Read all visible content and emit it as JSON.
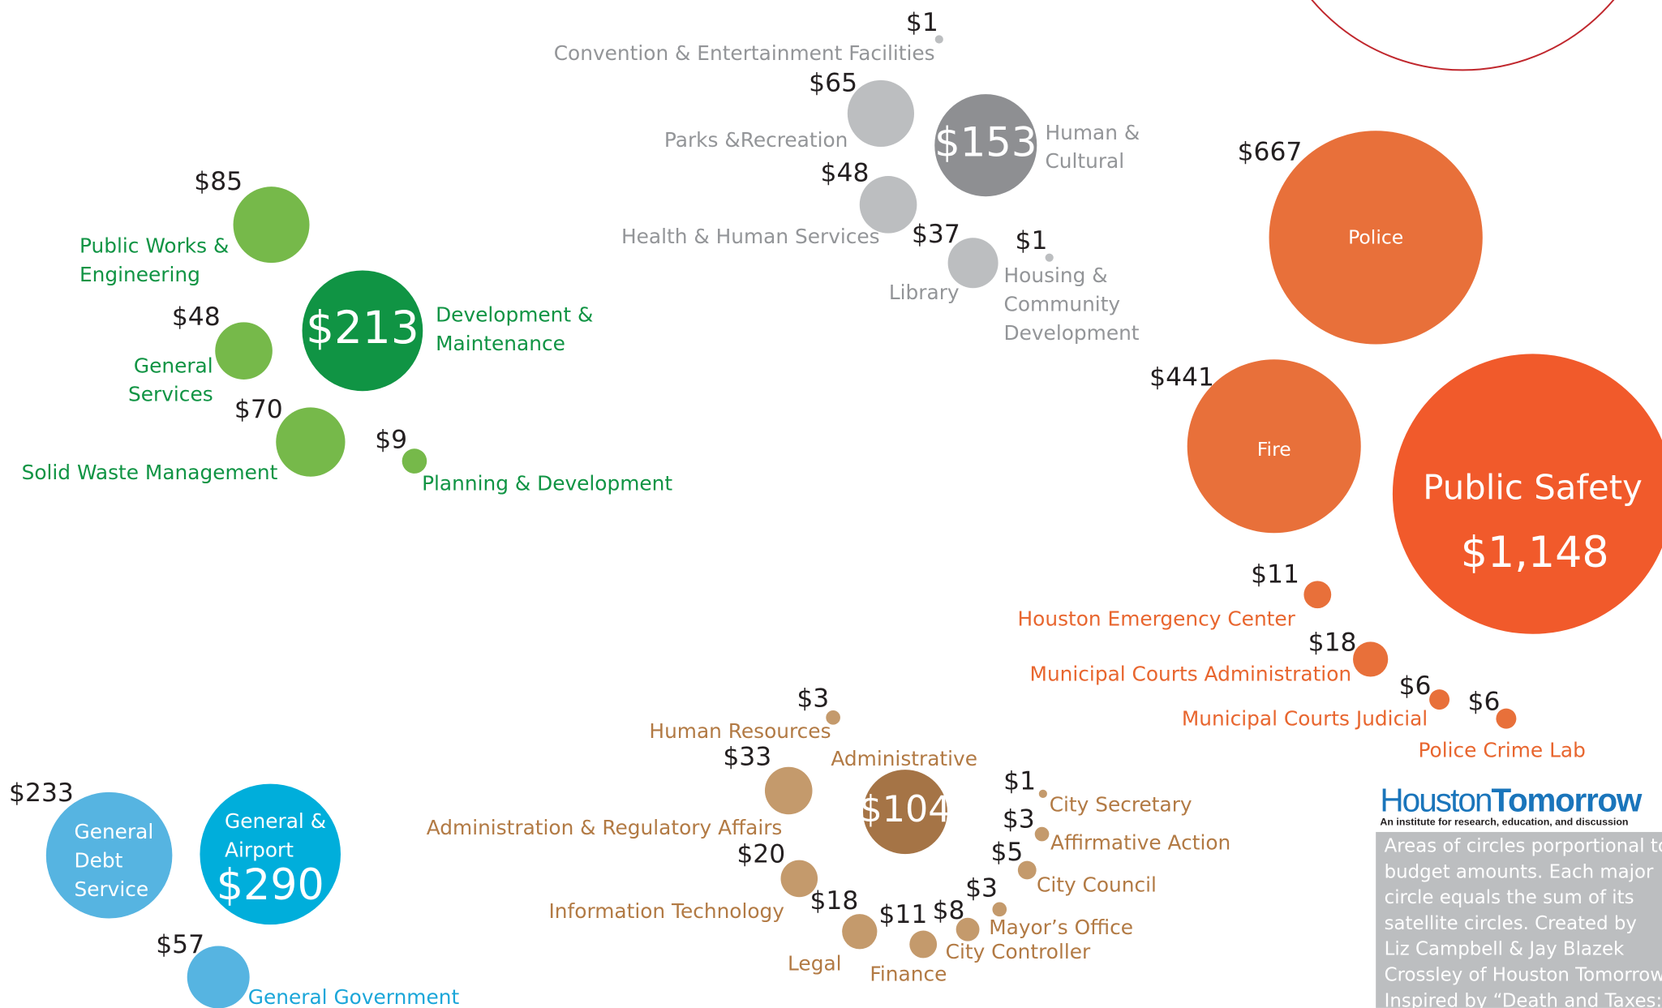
{
  "chart_data": {
    "type": "bubble",
    "categories": [
      "Convention & Entertainment Facilities",
      "Parks &Recreation",
      [
        "Human &",
        "Cultural"
      ],
      "Health & Human Services",
      "Library",
      [
        "Housing &",
        "Community",
        "Development"
      ],
      [
        "Public Works &",
        "Engineering"
      ],
      [
        "Development &",
        "Maintenance"
      ],
      [
        "General",
        "Services"
      ],
      "Solid Waste Management",
      "Planning & Development",
      "Police",
      "Fire",
      "Public Safety",
      "Houston Emergency Center",
      "Municipal Courts Administration",
      "Municipal Courts Judicial",
      "Police Crime Lab",
      "Human Resources",
      "Administrative",
      "Administration & Regulatory Affairs",
      "Information Technology",
      "Legal",
      "Finance",
      "City Controller",
      "Mayor’s Office",
      "City Council",
      "Affirmative Action",
      "City Secretary",
      [
        "General",
        "Debt",
        "Service"
      ],
      [
        "General &",
        "Airport"
      ],
      "General Government"
    ],
    "values": [
      1,
      65,
      153,
      48,
      37,
      1,
      85,
      213,
      48,
      70,
      9,
      667,
      441,
      1148,
      11,
      18,
      6,
      6,
      3,
      104,
      33,
      20,
      18,
      11,
      8,
      3,
      5,
      3,
      1,
      233,
      290,
      57
    ],
    "value_labels": [
      "$1",
      "$65",
      "$153",
      "$48",
      "$37",
      "$1",
      "$85",
      "$213",
      "$48",
      "$70",
      "$9",
      "$667",
      "$441",
      "$1,148",
      "$11",
      "$18",
      "$6",
      "$6",
      "$3",
      "$104",
      "$33",
      "$20",
      "$18",
      "$11",
      "$8",
      "$3",
      "$5",
      "$3",
      "$1",
      "$233",
      "$290",
      "$57"
    ],
    "colors": [
      "#bcbec0",
      "#bcbec0",
      "#8e8f92",
      "#bcbec0",
      "#bcbec0",
      "#bcbec0",
      "#76b94a",
      "#109444",
      "#76b94a",
      "#76b94a",
      "#76b94a",
      "#e8703a",
      "#e8703a",
      "#f15a2b",
      "#e8703a",
      "#e8703a",
      "#e8703a",
      "#e8703a",
      "#c49a6c",
      "#a57446",
      "#c49a6c",
      "#c49a6c",
      "#c49a6c",
      "#c49a6c",
      "#c49a6c",
      "#c49a6c",
      "#c49a6c",
      "#c49a6c",
      "#c49a6c",
      "#56b4e1",
      "#00aedb",
      "#56b4e1"
    ],
    "label_colors": [
      "#939598",
      "#939598",
      "#939598",
      "#939598",
      "#939598",
      "#939598",
      "#109444",
      "#109444",
      "#109444",
      "#109444",
      "#109444",
      "#e8662f",
      "#e8662f",
      "#e8662f",
      "#e8662f",
      "#e8662f",
      "#e8662f",
      "#e8662f",
      "#b27a44",
      "#b27a44",
      "#b27a44",
      "#b27a44",
      "#b27a44",
      "#b27a44",
      "#b27a44",
      "#b27a44",
      "#b27a44",
      "#b27a44",
      "#b27a44",
      "#1ba6d9",
      "#1ba6d9",
      "#1ba6d9"
    ]
  },
  "logo": {
    "first": "Houston",
    "second": "Tomorrow",
    "tagline": "An institute for research, education, and discussion"
  },
  "note": [
    "Areas of circles porportional to",
    "budget amounts.  Each major",
    "circle equals the sum of its",
    "satellite circles.  Created by",
    "Liz Campbell & Jay Blazek",
    "Crossley of Houston Tomorrow.",
    "Inspired by “Death and Taxes:"
  ]
}
